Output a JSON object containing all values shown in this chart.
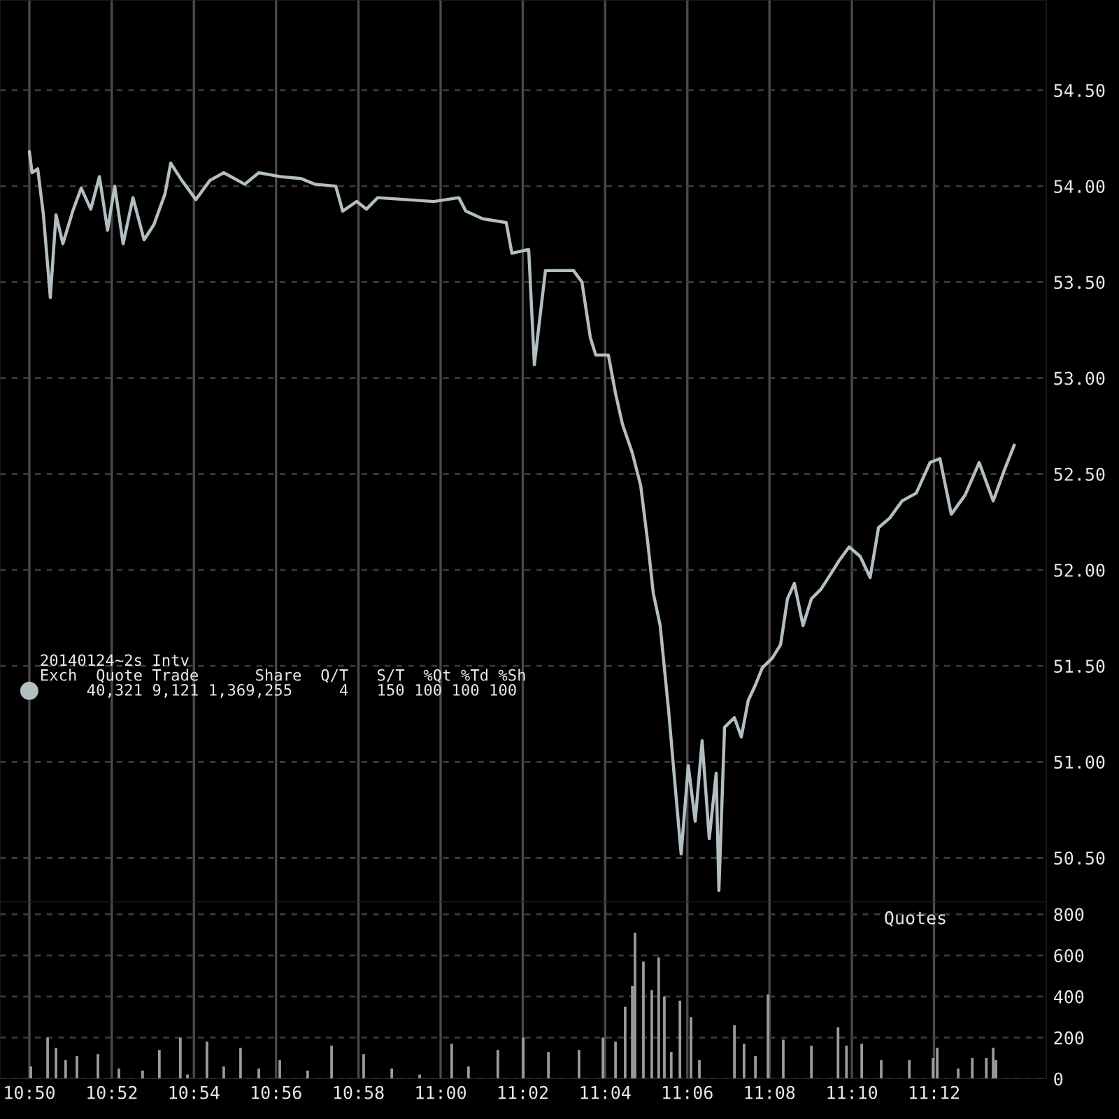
{
  "chart_data": [
    {
      "type": "line",
      "x": [
        10.8333,
        10.8344,
        10.8367,
        10.839,
        10.8418,
        10.8441,
        10.8469,
        10.8509,
        10.8543,
        10.8582,
        10.8617,
        10.865,
        10.8679,
        10.8713,
        10.8753,
        10.8798,
        10.8838,
        10.8883,
        10.8906,
        10.8951,
        10.9008,
        10.9065,
        10.9121,
        10.9206,
        10.9263,
        10.9348,
        10.9433,
        10.949,
        10.9575,
        10.9603,
        10.966,
        10.9699,
        10.9745,
        10.9858,
        10.9972,
        11.0074,
        11.0102,
        11.017,
        11.0266,
        11.0289,
        11.0357,
        11.038,
        11.0425,
        11.0493,
        11.0539,
        11.0573,
        11.0607,
        11.0629,
        11.068,
        11.0709,
        11.0737,
        11.0777,
        11.0811,
        11.0839,
        11.0862,
        11.089,
        11.0924,
        11.0953,
        11.0975,
        11.1004,
        11.1032,
        11.106,
        11.1089,
        11.1117,
        11.1128,
        11.1151,
        11.1191,
        11.1219,
        11.1247,
        11.1276,
        11.1304,
        11.1344,
        11.1378,
        11.1406,
        11.1434,
        11.1469,
        11.1503,
        11.1542,
        11.1582,
        11.1616,
        11.1656,
        11.1701,
        11.1741,
        11.1775,
        11.182,
        11.1871,
        11.1928,
        11.1984,
        11.2024,
        11.207,
        11.2126,
        11.2183,
        11.224,
        11.2285,
        11.2325
      ],
      "series": [
        {
          "color": "#b3bec2",
          "values": [
            54.18,
            54.07,
            54.09,
            53.85,
            53.42,
            53.85,
            53.7,
            53.87,
            53.99,
            53.88,
            54.05,
            53.77,
            54.0,
            53.7,
            53.94,
            53.72,
            53.8,
            53.96,
            54.12,
            54.03,
            53.93,
            54.03,
            54.07,
            54.01,
            54.07,
            54.05,
            54.04,
            54.01,
            54.0,
            53.87,
            53.92,
            53.88,
            53.94,
            53.93,
            53.92,
            53.94,
            53.87,
            53.83,
            53.81,
            53.65,
            53.67,
            53.07,
            53.56,
            53.56,
            53.56,
            53.5,
            53.21,
            53.12,
            53.12,
            52.92,
            52.76,
            52.61,
            52.44,
            52.15,
            51.88,
            51.71,
            51.27,
            50.84,
            50.52,
            50.98,
            50.69,
            51.11,
            50.6,
            50.94,
            50.33,
            51.18,
            51.23,
            51.13,
            51.32,
            51.4,
            51.49,
            51.54,
            51.61,
            51.85,
            51.93,
            51.71,
            51.85,
            51.9,
            51.98,
            52.05,
            52.12,
            52.07,
            51.96,
            52.22,
            52.27,
            52.36,
            52.4,
            52.56,
            52.58,
            52.29,
            52.39,
            52.56,
            52.36,
            52.52,
            52.65
          ]
        }
      ],
      "xlim": [
        10.8214,
        11.2455
      ],
      "ylim": [
        50.27,
        54.97
      ],
      "xticks": [
        {
          "value": 10.8333,
          "label": null
        },
        {
          "value": 10.8667,
          "label": null
        },
        {
          "value": 10.9,
          "label": null
        },
        {
          "value": 10.9333,
          "label": null
        },
        {
          "value": 10.9667,
          "label": null
        },
        {
          "value": 11.0,
          "label": null
        },
        {
          "value": 11.0333,
          "label": null
        },
        {
          "value": 11.0667,
          "label": null
        },
        {
          "value": 11.1,
          "label": null
        },
        {
          "value": 11.1333,
          "label": null
        },
        {
          "value": 11.1667,
          "label": null
        },
        {
          "value": 11.2,
          "label": null
        }
      ],
      "yticks": [
        {
          "value": 50.5,
          "label": "50.50"
        },
        {
          "value": 51.0,
          "label": "51.00"
        },
        {
          "value": 51.5,
          "label": "51.50"
        },
        {
          "value": 52.0,
          "label": "52.00"
        },
        {
          "value": 52.5,
          "label": "52.50"
        },
        {
          "value": 53.0,
          "label": "53.00"
        },
        {
          "value": 53.5,
          "label": "53.50"
        },
        {
          "value": 54.0,
          "label": "54.00"
        },
        {
          "value": 54.5,
          "label": "54.50"
        }
      ],
      "tick_labels": "y",
      "grid": true,
      "annotations": [
        "20140124~2s Intv",
        "Exch  Quote Trade      Share  Q/T   S/T  %Qt %Td %Sh",
        "     40,321 9,121 1,369,255     4   150 100 100 100"
      ]
    },
    {
      "type": "bar",
      "x": [
        10.8339,
        10.8407,
        10.8441,
        10.848,
        10.8526,
        10.8611,
        10.8696,
        10.8792,
        10.886,
        10.8945,
        10.8974,
        10.9053,
        10.9121,
        10.9189,
        10.9263,
        10.9348,
        10.9461,
        10.9558,
        10.9688,
        10.9802,
        10.9915,
        11.0045,
        11.0113,
        11.0232,
        11.0335,
        11.0437,
        11.0561,
        11.0658,
        11.0709,
        11.0748,
        11.0777,
        11.0788,
        11.0822,
        11.0856,
        11.0884,
        11.0907,
        11.0935,
        11.097,
        11.1015,
        11.1049,
        11.1191,
        11.123,
        11.1276,
        11.1327,
        11.1389,
        11.1503,
        11.1611,
        11.1645,
        11.1707,
        11.1786,
        11.19,
        11.1996,
        11.2013,
        11.2098,
        11.2155,
        11.2212,
        11.224,
        11.2251
      ],
      "series": [
        {
          "color": "#9c9c9c",
          "values": [
            60,
            200,
            150,
            90,
            110,
            120,
            50,
            40,
            140,
            200,
            20,
            180,
            60,
            150,
            50,
            90,
            40,
            160,
            120,
            50,
            20,
            170,
            60,
            140,
            200,
            130,
            140,
            200,
            180,
            350,
            450,
            710,
            570,
            430,
            590,
            400,
            130,
            380,
            300,
            90,
            260,
            170,
            110,
            410,
            190,
            160,
            250,
            160,
            170,
            90,
            90,
            100,
            150,
            50,
            100,
            100,
            150,
            90
          ]
        }
      ],
      "xlim": [
        10.8214,
        11.2455
      ],
      "ylim": [
        0,
        860
      ],
      "xticks": [
        {
          "value": 10.8333,
          "label": "10:50"
        },
        {
          "value": 10.8667,
          "label": "10:52"
        },
        {
          "value": 10.9,
          "label": "10:54"
        },
        {
          "value": 10.9333,
          "label": "10:56"
        },
        {
          "value": 10.9667,
          "label": "10:58"
        },
        {
          "value": 11.0,
          "label": "11:00"
        },
        {
          "value": 11.0333,
          "label": "11:02"
        },
        {
          "value": 11.0667,
          "label": "11:04"
        },
        {
          "value": 11.1,
          "label": "11:06"
        },
        {
          "value": 11.1333,
          "label": "11:08"
        },
        {
          "value": 11.1667,
          "label": "11:10"
        },
        {
          "value": 11.2,
          "label": "11:12"
        }
      ],
      "yticks": [
        0,
        200,
        400,
        600,
        800
      ],
      "grid": true,
      "annotations": [
        "Quotes"
      ]
    }
  ]
}
